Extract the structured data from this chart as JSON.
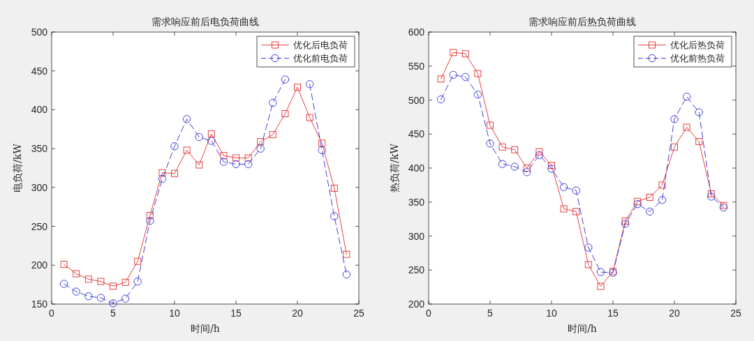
{
  "chart_data": [
    {
      "type": "line",
      "title": "需求响应前后电负荷曲线",
      "xlabel": "时间/h",
      "ylabel": "电负荷/kW",
      "x": [
        1,
        2,
        3,
        4,
        5,
        6,
        7,
        8,
        9,
        10,
        11,
        12,
        13,
        14,
        15,
        16,
        17,
        18,
        19,
        20,
        21,
        22,
        23,
        24
      ],
      "xlim": [
        0,
        25
      ],
      "xticks": [
        0,
        5,
        10,
        15,
        20,
        25
      ],
      "ylim": [
        150,
        500
      ],
      "yticks": [
        150,
        200,
        250,
        300,
        350,
        400,
        450,
        500
      ],
      "legend": "top right",
      "series": [
        {
          "name": "优化后电负荷",
          "color": "#e8403f",
          "marker": "square",
          "line_style": "solid",
          "values": [
            201,
            189,
            182,
            179,
            173,
            178,
            205,
            264,
            319,
            318,
            348,
            329,
            369,
            341,
            338,
            338,
            359,
            368,
            395,
            429,
            390,
            357,
            299,
            214
          ]
        },
        {
          "name": "优化前电负荷",
          "color": "#4040e0",
          "marker": "circle",
          "line_style": "dashed",
          "values": [
            176,
            166,
            160,
            158,
            151,
            157,
            179,
            257,
            311,
            353,
            388,
            365,
            360,
            333,
            330,
            330,
            350,
            409,
            439,
            null,
            433,
            348,
            263,
            188
          ]
        }
      ]
    },
    {
      "type": "line",
      "title": "需求响应前后热负荷曲线",
      "xlabel": "时间/h",
      "ylabel": "热负荷/kW",
      "x": [
        1,
        2,
        3,
        4,
        5,
        6,
        7,
        8,
        9,
        10,
        11,
        12,
        13,
        14,
        15,
        16,
        17,
        18,
        19,
        20,
        21,
        22,
        23,
        24
      ],
      "xlim": [
        0,
        25
      ],
      "xticks": [
        0,
        5,
        10,
        15,
        20,
        25
      ],
      "ylim": [
        200,
        600
      ],
      "yticks": [
        200,
        250,
        300,
        350,
        400,
        450,
        500,
        550,
        600
      ],
      "legend": "top right",
      "series": [
        {
          "name": "优化后热负荷",
          "color": "#e8403f",
          "marker": "square",
          "line_style": "solid",
          "values": [
            531,
            570,
            568,
            539,
            463,
            431,
            427,
            400,
            424,
            404,
            340,
            336,
            258,
            226,
            248,
            322,
            351,
            357,
            375,
            431,
            460,
            439,
            362,
            345
          ]
        },
        {
          "name": "优化前热负荷",
          "color": "#4040e0",
          "marker": "circle",
          "line_style": "dashed",
          "values": [
            501,
            537,
            534,
            508,
            436,
            406,
            402,
            394,
            419,
            399,
            372,
            367,
            283,
            247,
            246,
            318,
            347,
            336,
            353,
            472,
            505,
            482,
            358,
            342
          ]
        }
      ]
    }
  ]
}
